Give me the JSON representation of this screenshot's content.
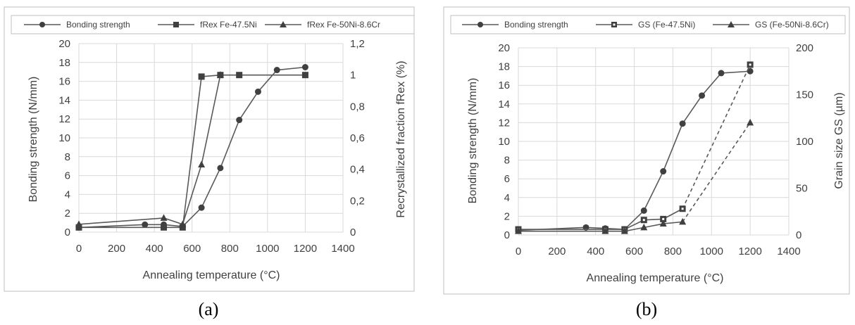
{
  "colors": {
    "series": "#595959",
    "grid": "#d9d9d9",
    "frame": "#bfbfbf",
    "text": "#404040"
  },
  "chart_data": [
    {
      "type": "line",
      "caption": "(a)",
      "xlabel": "Annealing temperature (°C)",
      "ylabel": "Bonding strength (N/mm)",
      "y2label": "Recrystallized fraction fRex (%)",
      "xlim": [
        0,
        1400
      ],
      "ylim": [
        0,
        20
      ],
      "y2lim": [
        0,
        1.2
      ],
      "xticks": [
        "0",
        "200",
        "400",
        "600",
        "800",
        "1000",
        "1200",
        "1400"
      ],
      "yticks": [
        "0",
        "2",
        "4",
        "6",
        "8",
        "10",
        "12",
        "14",
        "16",
        "18",
        "20"
      ],
      "y2ticks": [
        "0",
        "0,2",
        "0,4",
        "0,6",
        "0,8",
        "1",
        "1,2"
      ],
      "grid": true,
      "legend_position": "top",
      "series": [
        {
          "name": "Bonding strength",
          "marker": "circle",
          "axis": "y",
          "dashed": false,
          "x": [
            0,
            350,
            450,
            550,
            650,
            750,
            850,
            950,
            1050,
            1200
          ],
          "values": [
            0.5,
            0.8,
            0.8,
            0.6,
            2.6,
            6.8,
            11.9,
            14.9,
            17.2,
            17.5
          ]
        },
        {
          "name": "fRex Fe-47.5Ni",
          "marker": "square",
          "axis": "y2",
          "dashed": false,
          "x": [
            0,
            450,
            550,
            650,
            750,
            850,
            1200
          ],
          "values": [
            0.03,
            0.03,
            0.03,
            0.99,
            1.0,
            1.0,
            1.0
          ]
        },
        {
          "name": "fRex Fe-50Ni-8.6Cr",
          "marker": "triangle",
          "axis": "y2",
          "dashed": false,
          "x": [
            0,
            450,
            550,
            650,
            750
          ],
          "values": [
            0.05,
            0.09,
            0.05,
            0.43,
            1.0
          ]
        }
      ]
    },
    {
      "type": "line",
      "caption": "(b)",
      "xlabel": "Annealing temperature (°C)",
      "ylabel": "Bonding strength (N/mm)",
      "y2label": "Grain size GS (µm)",
      "xlim": [
        0,
        1400
      ],
      "ylim": [
        0,
        20
      ],
      "y2lim": [
        0,
        200
      ],
      "xticks": [
        "0",
        "200",
        "400",
        "600",
        "800",
        "1000",
        "1200",
        "1400"
      ],
      "yticks": [
        "0",
        "2",
        "4",
        "6",
        "8",
        "10",
        "12",
        "14",
        "16",
        "18",
        "20"
      ],
      "y2ticks": [
        "0",
        "50",
        "100",
        "150",
        "200"
      ],
      "grid": true,
      "legend_position": "top",
      "series": [
        {
          "name": "Bonding strength",
          "marker": "circle",
          "axis": "y",
          "dashed": false,
          "x": [
            0,
            350,
            450,
            550,
            650,
            750,
            850,
            950,
            1050,
            1200
          ],
          "values": [
            0.5,
            0.8,
            0.7,
            0.6,
            2.6,
            6.8,
            11.9,
            14.9,
            17.3,
            17.5
          ]
        },
        {
          "name": "GS (Fe-47.5Ni)",
          "marker": "square-dot",
          "axis": "y2",
          "dashed_after": 850,
          "x": [
            0,
            450,
            550,
            650,
            750,
            850,
            1200
          ],
          "values": [
            6,
            6,
            6,
            16,
            17,
            28,
            182
          ]
        },
        {
          "name": "GS (Fe-50Ni-8.6Cr)",
          "marker": "triangle",
          "axis": "y2",
          "dashed_after": 850,
          "x": [
            0,
            450,
            550,
            650,
            750,
            850,
            1200
          ],
          "values": [
            4,
            4,
            4,
            8,
            12,
            14,
            120
          ]
        }
      ]
    }
  ]
}
